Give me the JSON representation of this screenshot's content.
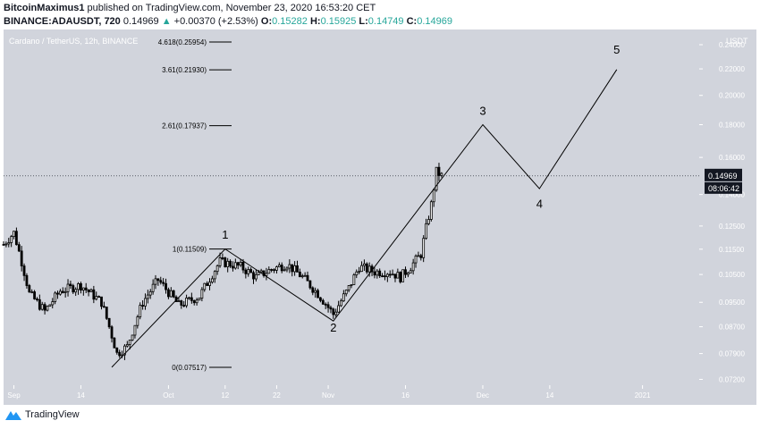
{
  "header": {
    "author": "BitcoinMaximus1",
    "published_text": "published on TradingView.com, November 23, 2020 16:53:20 CET",
    "symbol": "BINANCE:ADAUSDT, 720",
    "last": "0.14969",
    "change_arrow": "▲",
    "change": "+0.00370 (+2.53%)",
    "o_label": "O:",
    "o_val": "0.15282",
    "h_label": "H:",
    "h_val": "0.15925",
    "l_label": "L:",
    "l_val": "0.14749",
    "c_label": "C:",
    "c_val": "0.14969"
  },
  "footer": {
    "brand": "TradingView"
  },
  "colors": {
    "plot_bg": "#d1d4dc",
    "candle": "#000000",
    "up_accent": "#26a69a",
    "price_tag": "#131722"
  },
  "chart_data": {
    "type": "candlestick",
    "title": "Cardano / TetherUS, 12h, BINANCE",
    "currency": "USDT",
    "ylim": [
      0.0705,
      0.2535
    ],
    "y_scale": "log",
    "yticks": [
      "0.24000",
      "0.22000",
      "0.20000",
      "0.18000",
      "0.16000",
      "0.14000",
      "0.12500",
      "0.11500",
      "0.10500",
      "0.09500",
      "0.08700",
      "0.07900",
      "0.07200"
    ],
    "xticks": [
      {
        "label": "Sep",
        "date": "2020-09-01"
      },
      {
        "label": "14",
        "date": "2020-09-14"
      },
      {
        "label": "Oct",
        "date": "2020-10-01"
      },
      {
        "label": "12",
        "date": "2020-10-12"
      },
      {
        "label": "22",
        "date": "2020-10-22"
      },
      {
        "label": "Nov",
        "date": "2020-11-01"
      },
      {
        "label": "16",
        "date": "2020-11-16"
      },
      {
        "label": "Dec",
        "date": "2020-12-01"
      },
      {
        "label": "14",
        "date": "2020-12-14"
      },
      {
        "label": "2021",
        "date": "2021-01-01"
      }
    ],
    "xlim": [
      "2020-08-30",
      "2021-01-12"
    ],
    "last_price_label": "0.14969",
    "countdown_label": "08:06:42",
    "fib_levels": [
      {
        "label": "4.618(0.25954)",
        "value": 0.25954
      },
      {
        "label": "3.61(0.21930)",
        "value": 0.2193
      },
      {
        "label": "2.61(0.17937)",
        "value": 0.17937
      },
      {
        "label": "1(0.11509)",
        "value": 0.11509
      },
      {
        "label": "0(0.07517)",
        "value": 0.07517
      }
    ],
    "wave_labels": [
      {
        "label": "1",
        "date": "2020-10-12",
        "value": 0.1195
      },
      {
        "label": "2",
        "date": "2020-11-02",
        "value": 0.0855
      },
      {
        "label": "3",
        "date": "2020-12-01",
        "value": 0.1865
      },
      {
        "label": "4",
        "date": "2020-12-12",
        "value": 0.1335
      },
      {
        "label": "5",
        "date": "2020-12-27",
        "value": 0.2325
      }
    ],
    "wave_path": [
      {
        "date": "2020-09-20",
        "value": 0.0752
      },
      {
        "date": "2020-10-12",
        "value": 0.1151
      },
      {
        "date": "2020-11-02",
        "value": 0.0888
      },
      {
        "date": "2020-12-01",
        "value": 0.18
      },
      {
        "date": "2020-12-12",
        "value": 0.143
      },
      {
        "date": "2020-12-27",
        "value": 0.2195
      }
    ],
    "anchors": [
      {
        "date": "2020-08-30",
        "value": 0.117
      },
      {
        "date": "2020-09-01",
        "value": 0.122
      },
      {
        "date": "2020-09-04",
        "value": 0.098
      },
      {
        "date": "2020-09-07",
        "value": 0.092
      },
      {
        "date": "2020-09-10",
        "value": 0.099
      },
      {
        "date": "2020-09-14",
        "value": 0.101
      },
      {
        "date": "2020-09-18",
        "value": 0.095
      },
      {
        "date": "2020-09-21",
        "value": 0.079
      },
      {
        "date": "2020-09-23",
        "value": 0.081
      },
      {
        "date": "2020-09-26",
        "value": 0.095
      },
      {
        "date": "2020-09-29",
        "value": 0.103
      },
      {
        "date": "2020-10-03",
        "value": 0.094
      },
      {
        "date": "2020-10-07",
        "value": 0.097
      },
      {
        "date": "2020-10-11",
        "value": 0.11
      },
      {
        "date": "2020-10-15",
        "value": 0.108
      },
      {
        "date": "2020-10-18",
        "value": 0.104
      },
      {
        "date": "2020-10-21",
        "value": 0.107
      },
      {
        "date": "2020-10-24",
        "value": 0.109
      },
      {
        "date": "2020-10-27",
        "value": 0.104
      },
      {
        "date": "2020-10-30",
        "value": 0.098
      },
      {
        "date": "2020-11-02",
        "value": 0.091
      },
      {
        "date": "2020-11-05",
        "value": 0.1
      },
      {
        "date": "2020-11-07",
        "value": 0.108
      },
      {
        "date": "2020-11-10",
        "value": 0.106
      },
      {
        "date": "2020-11-13",
        "value": 0.106
      },
      {
        "date": "2020-11-15",
        "value": 0.104
      },
      {
        "date": "2020-11-17",
        "value": 0.108
      },
      {
        "date": "2020-11-19",
        "value": 0.113
      },
      {
        "date": "2020-11-20",
        "value": 0.124
      },
      {
        "date": "2020-11-21",
        "value": 0.135
      },
      {
        "date": "2020-11-22",
        "value": 0.152
      },
      {
        "date": "2020-11-23",
        "value": 0.1497
      }
    ]
  }
}
